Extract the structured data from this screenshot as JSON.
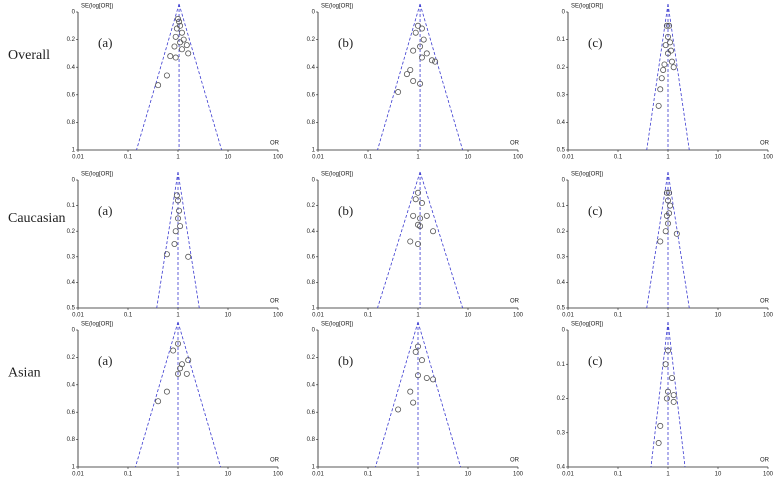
{
  "rows": [
    "Overall",
    "Caucasian",
    "Asian"
  ],
  "chart_data": [
    {
      "type": "funnel",
      "panel_label": "(a)",
      "ylabel": "SE(log[OR])",
      "xlabel": "OR",
      "log_x": true,
      "xlim": [
        0.01,
        100
      ],
      "xticks": [
        0.01,
        0.1,
        1,
        10,
        100
      ],
      "ylim": [
        0,
        1
      ],
      "yticks": [
        0,
        0.2,
        0.4,
        0.6,
        0.8,
        1
      ],
      "pooled_or": 1.05,
      "color": "#555555",
      "x": [
        1,
        1.05,
        1.1,
        0.95,
        1.2,
        0.9,
        1.3,
        1.1,
        0.85,
        1.5,
        1.2,
        0.7,
        1.6,
        0.9,
        0.6,
        0.4
      ],
      "y": [
        0.05,
        0.07,
        0.1,
        0.12,
        0.15,
        0.18,
        0.2,
        0.22,
        0.25,
        0.24,
        0.27,
        0.32,
        0.3,
        0.33,
        0.46,
        0.53
      ]
    },
    {
      "type": "funnel",
      "panel_label": "(b)",
      "ylabel": "SE(log[OR])",
      "xlabel": "OR",
      "log_x": true,
      "xlim": [
        0.01,
        100
      ],
      "xticks": [
        0.01,
        0.1,
        1,
        10,
        100
      ],
      "ylim": [
        0,
        1
      ],
      "yticks": [
        0,
        0.2,
        0.4,
        0.6,
        0.8,
        1
      ],
      "pooled_or": 1.1,
      "color": "#555555",
      "x": [
        1,
        1.2,
        0.9,
        1.3,
        1.1,
        0.8,
        1.5,
        1.2,
        1.9,
        2.2,
        0.7,
        0.6,
        0.8,
        1.1,
        0.4
      ],
      "y": [
        0.1,
        0.12,
        0.15,
        0.2,
        0.25,
        0.28,
        0.3,
        0.33,
        0.35,
        0.36,
        0.42,
        0.45,
        0.5,
        0.52,
        0.58
      ]
    },
    {
      "type": "funnel",
      "panel_label": "(c)",
      "ylabel": "SE(log[OR])",
      "xlabel": "OR",
      "log_x": true,
      "xlim": [
        0.01,
        100
      ],
      "xticks": [
        0.01,
        0.1,
        1,
        10,
        100
      ],
      "ylim": [
        0,
        0.5
      ],
      "yticks": [
        0,
        0.1,
        0.2,
        0.3,
        0.4,
        0.5
      ],
      "pooled_or": 1.0,
      "color": "#555555",
      "x": [
        0.95,
        1.05,
        1.0,
        1.1,
        0.9,
        1.15,
        1.0,
        1.2,
        0.85,
        1.3,
        0.8,
        0.75,
        0.7,
        0.65
      ],
      "y": [
        0.05,
        0.05,
        0.09,
        0.11,
        0.12,
        0.14,
        0.15,
        0.18,
        0.19,
        0.2,
        0.21,
        0.24,
        0.28,
        0.34
      ]
    },
    {
      "type": "funnel",
      "panel_label": "(a)",
      "ylabel": "SE(log[OR])",
      "xlabel": "OR",
      "log_x": true,
      "xlim": [
        0.01,
        100
      ],
      "xticks": [
        0.01,
        0.1,
        1,
        10,
        100
      ],
      "ylim": [
        0,
        0.5
      ],
      "yticks": [
        0,
        0.1,
        0.2,
        0.3,
        0.4,
        0.5
      ],
      "pooled_or": 1.0,
      "color": "#555555",
      "x": [
        0.95,
        1.0,
        1.05,
        1.0,
        1.1,
        0.9,
        0.85,
        0.6,
        1.6
      ],
      "y": [
        0.06,
        0.08,
        0.12,
        0.15,
        0.18,
        0.2,
        0.25,
        0.29,
        0.3
      ]
    },
    {
      "type": "funnel",
      "panel_label": "(b)",
      "ylabel": "SE(log[OR])",
      "xlabel": "OR",
      "log_x": true,
      "xlim": [
        0.01,
        100
      ],
      "xticks": [
        0.01,
        0.1,
        1,
        10,
        100
      ],
      "ylim": [
        0,
        1
      ],
      "yticks": [
        0,
        0.2,
        0.4,
        0.6,
        0.8,
        1
      ],
      "pooled_or": 1.1,
      "color": "#555555",
      "x": [
        1,
        0.9,
        1.2,
        0.8,
        1.1,
        1.5,
        1.0,
        1.1,
        2.0,
        0.7,
        1.0
      ],
      "y": [
        0.1,
        0.15,
        0.18,
        0.28,
        0.3,
        0.28,
        0.35,
        0.36,
        0.4,
        0.48,
        0.5
      ]
    },
    {
      "type": "funnel",
      "panel_label": "(c)",
      "ylabel": "SE(log[OR])",
      "xlabel": "OR",
      "log_x": true,
      "xlim": [
        0.01,
        100
      ],
      "xticks": [
        0.01,
        0.1,
        1,
        10,
        100
      ],
      "ylim": [
        0,
        0.5
      ],
      "yticks": [
        0,
        0.1,
        0.2,
        0.3,
        0.4,
        0.5
      ],
      "pooled_or": 1.0,
      "color": "#555555",
      "x": [
        0.95,
        1.05,
        1.0,
        1.1,
        1.05,
        0.95,
        1.0,
        0.9,
        1.5,
        0.7
      ],
      "y": [
        0.05,
        0.05,
        0.08,
        0.1,
        0.13,
        0.14,
        0.17,
        0.2,
        0.21,
        0.24
      ]
    },
    {
      "type": "funnel",
      "panel_label": "(a)",
      "ylabel": "SE(log[OR])",
      "xlabel": "OR",
      "log_x": true,
      "xlim": [
        0.01,
        100
      ],
      "xticks": [
        0.01,
        0.1,
        1,
        10,
        100
      ],
      "ylim": [
        0,
        1
      ],
      "yticks": [
        0,
        0.2,
        0.4,
        0.6,
        0.8,
        1
      ],
      "pooled_or": 1.0,
      "color": "#555555",
      "x": [
        1,
        0.8,
        1.2,
        1.1,
        1.6,
        1.0,
        1.5,
        0.6,
        0.4
      ],
      "y": [
        0.1,
        0.15,
        0.25,
        0.28,
        0.22,
        0.32,
        0.32,
        0.45,
        0.52
      ]
    },
    {
      "type": "funnel",
      "panel_label": "(b)",
      "ylabel": "SE(log[OR])",
      "xlabel": "OR",
      "log_x": true,
      "xlim": [
        0.01,
        100
      ],
      "xticks": [
        0.01,
        0.1,
        1,
        10,
        100
      ],
      "ylim": [
        0,
        1
      ],
      "yticks": [
        0,
        0.2,
        0.4,
        0.6,
        0.8,
        1
      ],
      "pooled_or": 1.0,
      "color": "#555555",
      "x": [
        1,
        0.9,
        1.2,
        1.0,
        1.5,
        2.0,
        0.7,
        0.8,
        0.4
      ],
      "y": [
        0.12,
        0.16,
        0.22,
        0.33,
        0.35,
        0.36,
        0.45,
        0.53,
        0.58
      ]
    },
    {
      "type": "funnel",
      "panel_label": "(c)",
      "ylabel": "SE(log[OR])",
      "xlabel": "OR",
      "log_x": true,
      "xlim": [
        0.01,
        100
      ],
      "xticks": [
        0.01,
        0.1,
        1,
        10,
        100
      ],
      "ylim": [
        0,
        0.4
      ],
      "yticks": [
        0,
        0.1,
        0.2,
        0.3,
        0.4
      ],
      "pooled_or": 1.0,
      "color": "#555555",
      "x": [
        1.0,
        0.9,
        1.2,
        1.0,
        1.3,
        0.95,
        1.3,
        0.7,
        0.65
      ],
      "y": [
        0.06,
        0.1,
        0.14,
        0.18,
        0.19,
        0.2,
        0.21,
        0.28,
        0.33
      ]
    }
  ]
}
